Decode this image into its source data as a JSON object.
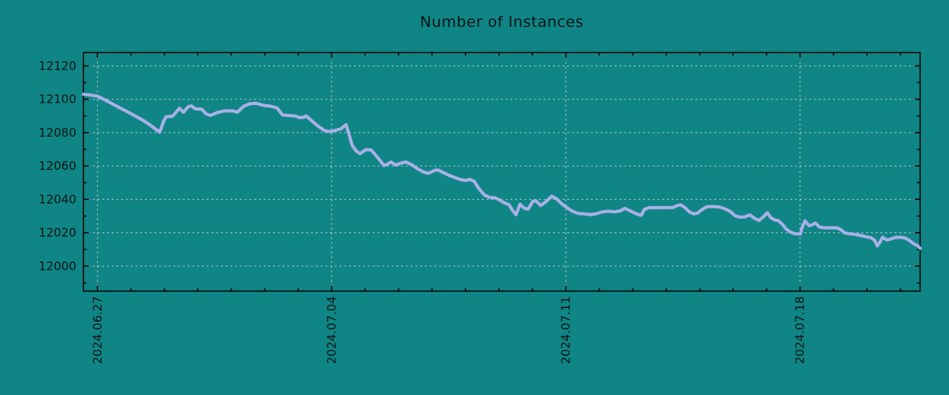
{
  "window": {
    "background_color": "#108585",
    "text_color": "#061414"
  },
  "header": {
    "title": "Number of Instances"
  },
  "chart_data": {
    "type": "line",
    "title": "Number of Instances",
    "xlabel": "",
    "ylabel": "",
    "grid": {
      "visible": true,
      "color": "#cdd9d7",
      "style": "dashed"
    },
    "axis_color": "#000000",
    "legend": "none",
    "x_axis": {
      "unit": "date",
      "range_days": [
        -0.42,
        24.59
      ],
      "minor_tick_interval_days": 1,
      "major_ticks": [
        {
          "day": 0,
          "label": "2024.06.27"
        },
        {
          "day": 7,
          "label": "2024.07.04"
        },
        {
          "day": 14,
          "label": "2024.07.11"
        },
        {
          "day": 21,
          "label": "2024.07.18"
        }
      ]
    },
    "y_axis": {
      "range": [
        11985,
        12128
      ],
      "ticks": [
        12000,
        12020,
        12040,
        12060,
        12080,
        12100,
        12120
      ],
      "minor_tick_interval": 10
    },
    "series": [
      {
        "name": "instances",
        "color": "#aab0e8",
        "points": [
          [
            -0.42,
            12103.0
          ],
          [
            -0.2,
            12102.5
          ],
          [
            0.0,
            12101.8
          ],
          [
            0.28,
            12099.0
          ],
          [
            0.63,
            12095.3
          ],
          [
            0.99,
            12091.5
          ],
          [
            1.34,
            12087.6
          ],
          [
            1.58,
            12084.5
          ],
          [
            1.86,
            12080.2
          ],
          [
            1.98,
            12087.0
          ],
          [
            2.05,
            12089.5
          ],
          [
            2.24,
            12089.8
          ],
          [
            2.34,
            12092.0
          ],
          [
            2.45,
            12094.6
          ],
          [
            2.57,
            12092.2
          ],
          [
            2.71,
            12095.5
          ],
          [
            2.81,
            12096.0
          ],
          [
            2.93,
            12094.2
          ],
          [
            3.12,
            12094.0
          ],
          [
            3.24,
            12091.3
          ],
          [
            3.38,
            12090.3
          ],
          [
            3.59,
            12092.1
          ],
          [
            3.78,
            12093.0
          ],
          [
            4.06,
            12093.0
          ],
          [
            4.18,
            12092.2
          ],
          [
            4.37,
            12095.8
          ],
          [
            4.54,
            12097.2
          ],
          [
            4.73,
            12097.6
          ],
          [
            4.96,
            12096.3
          ],
          [
            5.18,
            12095.8
          ],
          [
            5.37,
            12094.8
          ],
          [
            5.53,
            12090.6
          ],
          [
            5.72,
            12090.2
          ],
          [
            5.91,
            12090.0
          ],
          [
            6.03,
            12089.0
          ],
          [
            6.17,
            12089.2
          ],
          [
            6.24,
            12090.0
          ],
          [
            6.34,
            12088.2
          ],
          [
            6.48,
            12085.8
          ],
          [
            6.62,
            12083.5
          ],
          [
            6.79,
            12081.2
          ],
          [
            6.95,
            12080.6
          ],
          [
            7.12,
            12081.4
          ],
          [
            7.28,
            12082.3
          ],
          [
            7.43,
            12084.8
          ],
          [
            7.52,
            12079.0
          ],
          [
            7.61,
            12072.5
          ],
          [
            7.73,
            12069.0
          ],
          [
            7.85,
            12067.4
          ],
          [
            8.02,
            12069.8
          ],
          [
            8.18,
            12069.6
          ],
          [
            8.3,
            12066.8
          ],
          [
            8.42,
            12064.0
          ],
          [
            8.56,
            12060.3
          ],
          [
            8.68,
            12061.2
          ],
          [
            8.77,
            12062.4
          ],
          [
            8.92,
            12060.5
          ],
          [
            9.08,
            12061.8
          ],
          [
            9.22,
            12062.4
          ],
          [
            9.39,
            12060.8
          ],
          [
            9.55,
            12058.5
          ],
          [
            9.72,
            12056.6
          ],
          [
            9.89,
            12055.6
          ],
          [
            10.08,
            12057.4
          ],
          [
            10.19,
            12057.6
          ],
          [
            10.34,
            12056.0
          ],
          [
            10.5,
            12054.5
          ],
          [
            10.67,
            12053.2
          ],
          [
            10.83,
            12052.0
          ],
          [
            11.0,
            12051.3
          ],
          [
            11.12,
            12052.0
          ],
          [
            11.26,
            12050.8
          ],
          [
            11.4,
            12046.5
          ],
          [
            11.57,
            12042.6
          ],
          [
            11.73,
            12041.1
          ],
          [
            11.87,
            12041.0
          ],
          [
            12.02,
            12039.6
          ],
          [
            12.16,
            12037.9
          ],
          [
            12.3,
            12036.8
          ],
          [
            12.42,
            12033.0
          ],
          [
            12.51,
            12030.8
          ],
          [
            12.63,
            12037.1
          ],
          [
            12.75,
            12034.8
          ],
          [
            12.87,
            12034.0
          ],
          [
            13.01,
            12038.7
          ],
          [
            13.1,
            12039.2
          ],
          [
            13.25,
            12036.3
          ],
          [
            13.41,
            12038.7
          ],
          [
            13.58,
            12041.9
          ],
          [
            13.72,
            12040.3
          ],
          [
            13.89,
            12037.1
          ],
          [
            14.05,
            12034.8
          ],
          [
            14.19,
            12032.9
          ],
          [
            14.36,
            12031.6
          ],
          [
            14.55,
            12031.3
          ],
          [
            14.74,
            12030.9
          ],
          [
            14.9,
            12031.3
          ],
          [
            15.07,
            12032.4
          ],
          [
            15.26,
            12032.9
          ],
          [
            15.45,
            12032.5
          ],
          [
            15.61,
            12033.0
          ],
          [
            15.76,
            12034.6
          ],
          [
            15.9,
            12033.4
          ],
          [
            16.02,
            12032.1
          ],
          [
            16.16,
            12031.0
          ],
          [
            16.25,
            12030.4
          ],
          [
            16.35,
            12034.0
          ],
          [
            16.49,
            12035.0
          ],
          [
            16.84,
            12035.0
          ],
          [
            17.2,
            12035.1
          ],
          [
            17.34,
            12036.4
          ],
          [
            17.44,
            12036.7
          ],
          [
            17.58,
            12034.7
          ],
          [
            17.7,
            12032.4
          ],
          [
            17.82,
            12031.3
          ],
          [
            17.93,
            12031.7
          ],
          [
            18.08,
            12034.0
          ],
          [
            18.22,
            12035.6
          ],
          [
            18.41,
            12035.7
          ],
          [
            18.6,
            12035.4
          ],
          [
            18.79,
            12034.0
          ],
          [
            18.93,
            12032.5
          ],
          [
            19.07,
            12030.0
          ],
          [
            19.21,
            12029.3
          ],
          [
            19.35,
            12029.5
          ],
          [
            19.5,
            12030.7
          ],
          [
            19.64,
            12028.6
          ],
          [
            19.78,
            12027.4
          ],
          [
            19.92,
            12029.8
          ],
          [
            20.02,
            12032.0
          ],
          [
            20.13,
            12029.0
          ],
          [
            20.25,
            12027.6
          ],
          [
            20.35,
            12027.3
          ],
          [
            20.47,
            12025.1
          ],
          [
            20.58,
            12022.3
          ],
          [
            20.7,
            12020.5
          ],
          [
            20.84,
            12019.4
          ],
          [
            21.01,
            12019.3
          ],
          [
            21.08,
            12024.0
          ],
          [
            21.15,
            12027.1
          ],
          [
            21.27,
            12024.2
          ],
          [
            21.37,
            12024.8
          ],
          [
            21.46,
            12025.8
          ],
          [
            21.58,
            12023.4
          ],
          [
            21.74,
            12022.9
          ],
          [
            21.93,
            12023.0
          ],
          [
            22.12,
            12022.9
          ],
          [
            22.24,
            12021.5
          ],
          [
            22.33,
            12019.9
          ],
          [
            22.48,
            12019.4
          ],
          [
            22.64,
            12019.0
          ],
          [
            22.81,
            12018.4
          ],
          [
            22.97,
            12017.6
          ],
          [
            23.12,
            12017.0
          ],
          [
            23.23,
            12015.5
          ],
          [
            23.31,
            12012.1
          ],
          [
            23.4,
            12014.8
          ],
          [
            23.47,
            12017.3
          ],
          [
            23.59,
            12015.7
          ],
          [
            23.73,
            12016.3
          ],
          [
            23.85,
            12017.2
          ],
          [
            23.99,
            12017.3
          ],
          [
            24.13,
            12016.9
          ],
          [
            24.27,
            12015.4
          ],
          [
            24.39,
            12013.5
          ],
          [
            24.51,
            12012.3
          ],
          [
            24.59,
            12010.6
          ]
        ]
      }
    ]
  }
}
